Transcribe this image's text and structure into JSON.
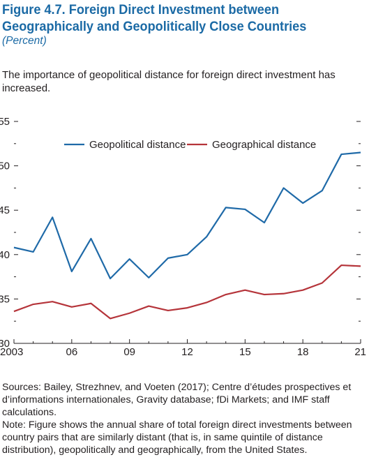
{
  "header": {
    "title": "Figure 4.7.  Foreign Direct Investment between Geographically and Geopolitically Close Countries",
    "subtitle": "(Percent)",
    "lede": "The importance of geopolitical distance for foreign direct investment has increased."
  },
  "chart_data": {
    "type": "line",
    "x": [
      2003,
      2004,
      2005,
      2006,
      2007,
      2008,
      2009,
      2010,
      2011,
      2012,
      2013,
      2014,
      2015,
      2016,
      2017,
      2018,
      2019,
      2020,
      2021
    ],
    "x_tick_labels": [
      "2003",
      "06",
      "09",
      "12",
      "15",
      "18",
      "21"
    ],
    "x_tick_values": [
      2003,
      2006,
      2009,
      2012,
      2015,
      2018,
      2021
    ],
    "y_ticks": [
      30,
      35,
      40,
      45,
      50,
      55
    ],
    "ylim": [
      30,
      55
    ],
    "xlim": [
      2003,
      2021
    ],
    "series": [
      {
        "name": "Geopolitical distance",
        "color": "#1f6aa8",
        "values": [
          40.8,
          40.3,
          44.2,
          38.1,
          41.8,
          37.3,
          39.5,
          37.4,
          39.6,
          40.0,
          42.0,
          45.3,
          45.1,
          43.6,
          47.5,
          45.8,
          47.2,
          51.3,
          51.5
        ]
      },
      {
        "name": "Geographical distance",
        "color": "#b5343a",
        "values": [
          33.6,
          34.4,
          34.7,
          34.1,
          34.5,
          32.8,
          33.4,
          34.2,
          33.7,
          34.0,
          34.6,
          35.5,
          36.0,
          35.5,
          35.6,
          36.0,
          36.8,
          38.8,
          38.7
        ]
      }
    ],
    "legend_position": "top-center",
    "grid": false
  },
  "footer": {
    "sources": "Sources: Bailey, Strezhnev, and Voeten (2017); Centre d’études prospectives et d’informations internationales, Gravity database; fDi Markets; and IMF staff calculations.",
    "note": "Note: Figure shows the annual share of total foreign direct investments between country pairs that are similarly distant (that is, in same quintile of distance distribution), geopolitically and geographically, from the United States."
  }
}
